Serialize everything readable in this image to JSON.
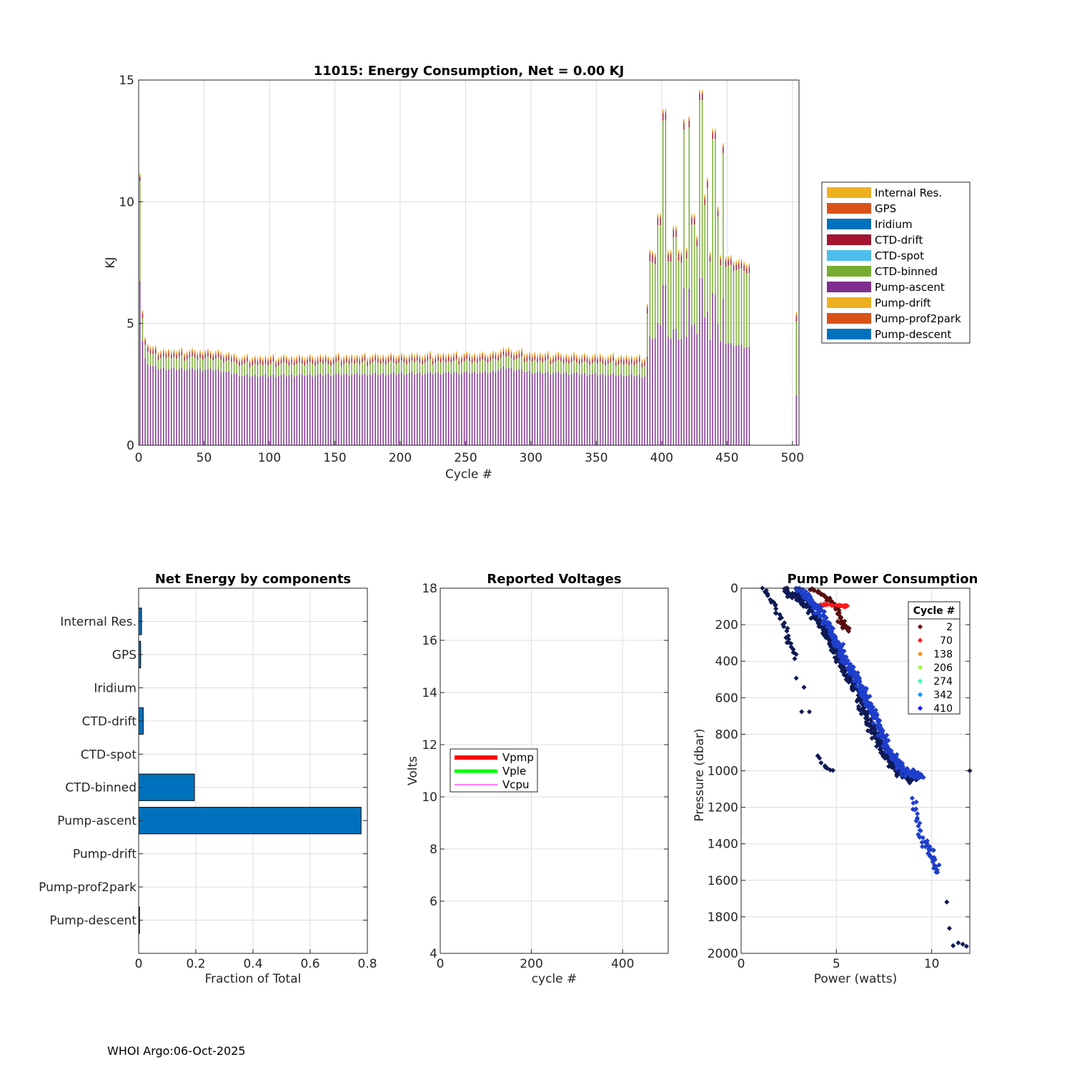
{
  "footer": "WHOI Argo:06-Oct-2025",
  "colors": {
    "Internal Res.": "#EDB120",
    "GPS": "#D95319",
    "Iridium": "#0072BD",
    "CTD-drift": "#A2142F",
    "CTD-spot": "#4DBEEE",
    "CTD-binned": "#77AC30",
    "Pump-ascent": "#7E2F8E",
    "Pump-drift": "#EDB120",
    "Pump-prof2park": "#D95319",
    "Pump-descent": "#0072BD",
    "hbar": "#0072BD"
  },
  "chart_data": [
    {
      "id": "energy",
      "type": "bar",
      "stacked": true,
      "title": "11015: Energy Consumption,  Net =   0.00 KJ",
      "xlabel": "Cycle #",
      "ylabel": "KJ",
      "xlim": [
        0,
        505
      ],
      "ylim": [
        0,
        15
      ],
      "xticks": [
        0,
        50,
        100,
        150,
        200,
        250,
        300,
        350,
        400,
        450,
        500
      ],
      "yticks": [
        0,
        5,
        10,
        15
      ],
      "grid": true,
      "legend": [
        "Internal Res.",
        "GPS",
        "Iridium",
        "CTD-drift",
        "CTD-spot",
        "CTD-binned",
        "Pump-ascent",
        "Pump-drift",
        "Pump-prof2park",
        "Pump-descent"
      ],
      "legend_position": "outside-right",
      "cycle_step": 2,
      "cycle_ranges": [
        [
          1,
          468
        ],
        [
          503,
          503
        ]
      ],
      "anchors": {
        "pump_ascent": [
          [
            1,
            6.8
          ],
          [
            2,
            5.0
          ],
          [
            4,
            3.6
          ],
          [
            8,
            3.3
          ],
          [
            15,
            3.15
          ],
          [
            60,
            3.1
          ],
          [
            80,
            2.85
          ],
          [
            150,
            2.9
          ],
          [
            270,
            3.0
          ],
          [
            280,
            3.2
          ],
          [
            300,
            3.0
          ],
          [
            388,
            2.85
          ],
          [
            390,
            4.4
          ],
          [
            430,
            4.4
          ],
          [
            450,
            4.2
          ],
          [
            468,
            4.0
          ],
          [
            503,
            2.0
          ]
        ],
        "ctd_binned": [
          [
            1,
            4.0
          ],
          [
            2,
            1.0
          ],
          [
            4,
            0.6
          ],
          [
            10,
            0.4
          ],
          [
            50,
            0.4
          ],
          [
            100,
            0.4
          ],
          [
            200,
            0.4
          ],
          [
            388,
            0.4
          ],
          [
            390,
            3.0
          ],
          [
            430,
            3.2
          ],
          [
            468,
            3.0
          ],
          [
            503,
            2.9
          ]
        ],
        "ctd_drift": [
          [
            1,
            0.15
          ],
          [
            388,
            0.15
          ],
          [
            390,
            0.3
          ],
          [
            468,
            0.2
          ],
          [
            503,
            0.2
          ]
        ],
        "gps": [
          [
            1,
            0.08
          ],
          [
            468,
            0.08
          ],
          [
            503,
            0.1
          ]
        ],
        "internal": [
          [
            1,
            0.08
          ],
          [
            468,
            0.1
          ],
          [
            503,
            0.1
          ]
        ]
      },
      "spikes": [
        [
          398,
          9.5
        ],
        [
          402,
          13.8
        ],
        [
          407,
          8.0
        ],
        [
          410,
          9.0
        ],
        [
          414,
          7.8
        ],
        [
          417,
          13.4
        ],
        [
          421,
          13.5
        ],
        [
          424,
          9.5
        ],
        [
          426,
          8.6
        ],
        [
          430,
          14.6
        ],
        [
          433,
          10.3
        ],
        [
          435,
          11.0
        ],
        [
          440,
          13.0
        ],
        [
          442,
          9.8
        ],
        [
          447,
          12.4
        ]
      ]
    },
    {
      "id": "components",
      "type": "bar",
      "orientation": "horizontal",
      "title": "Net Energy by components",
      "xlabel": "Fraction of Total",
      "categories": [
        "Internal Res.",
        "GPS",
        "Iridium",
        "CTD-drift",
        "CTD-spot",
        "CTD-binned",
        "Pump-ascent",
        "Pump-drift",
        "Pump-prof2park",
        "Pump-descent"
      ],
      "values": [
        0.01,
        0.007,
        0.0,
        0.016,
        0.0,
        0.195,
        0.778,
        0.0,
        0.0,
        0.003
      ],
      "xlim": [
        0,
        0.8
      ],
      "xticks": [
        "0",
        "0.2",
        "0.4",
        "0.6",
        "0.8"
      ],
      "grid": true
    },
    {
      "id": "voltages",
      "type": "line",
      "title": "Reported Voltages",
      "xlabel": "cycle #",
      "ylabel": "Volts",
      "xlim": [
        0,
        500
      ],
      "ylim": [
        4,
        18
      ],
      "xticks": [
        0,
        200,
        400
      ],
      "yticks": [
        4,
        6,
        8,
        10,
        12,
        14,
        16,
        18
      ],
      "grid": true,
      "series": [
        {
          "name": "Vpmp",
          "color": "#FF0000",
          "values": []
        },
        {
          "name": "Vple",
          "color": "#00FF00",
          "values": []
        },
        {
          "name": "Vcpu",
          "color": "#FF00FF",
          "values": []
        }
      ],
      "legend_position": "middle-left"
    },
    {
      "id": "pump",
      "type": "scatter",
      "title": "Pump Power Consumption",
      "xlabel": "Power (watts)",
      "ylabel": "Pressure (dbar)",
      "xlim": [
        0,
        12
      ],
      "ylim": [
        0,
        2000
      ],
      "y_reversed": true,
      "xticks": [
        0,
        5,
        10
      ],
      "yticks": [
        0,
        200,
        400,
        600,
        800,
        1000,
        1200,
        1400,
        1600,
        1800,
        2000
      ],
      "grid": true,
      "legend_title": "Cycle #",
      "legend_position": "top-right",
      "legend": [
        {
          "label": "2",
          "color": "#6B0A0A"
        },
        {
          "label": "70",
          "color": "#FF1A1A"
        },
        {
          "label": "138",
          "color": "#FF8C1A"
        },
        {
          "label": "206",
          "color": "#9BFF33"
        },
        {
          "label": "274",
          "color": "#33FFB5"
        },
        {
          "label": "342",
          "color": "#1A8CFF"
        },
        {
          "label": "410",
          "color": "#1A1AFF"
        }
      ],
      "clusters": [
        {
          "color": "#5A0E0E",
          "trend": [
            [
              3.6,
              0
            ],
            [
              4.4,
              40
            ],
            [
              5.0,
              100
            ],
            [
              5.3,
              200
            ],
            [
              5.6,
              230
            ]
          ],
          "n": 60,
          "jitter": [
            0.25,
            15
          ]
        },
        {
          "color": "#FF1A1A",
          "trend": [
            [
              4.3,
              90
            ],
            [
              5.2,
              95
            ],
            [
              5.6,
              100
            ]
          ],
          "n": 25,
          "jitter": [
            0.25,
            6
          ]
        },
        {
          "color": "#0F1A55",
          "trend": [
            [
              2.3,
              0
            ],
            [
              3.5,
              100
            ],
            [
              4.5,
              250
            ],
            [
              5.2,
              400
            ],
            [
              6.0,
              550
            ],
            [
              6.8,
              750
            ],
            [
              7.5,
              900
            ],
            [
              8.2,
              1000
            ],
            [
              9.0,
              1050
            ]
          ],
          "n": 420,
          "jitter": [
            0.3,
            30
          ]
        },
        {
          "color": "#1E3ECC",
          "trend": [
            [
              3.0,
              0
            ],
            [
              4.0,
              100
            ],
            [
              4.8,
              250
            ],
            [
              5.5,
              400
            ],
            [
              6.3,
              550
            ],
            [
              7.0,
              700
            ],
            [
              7.8,
              900
            ],
            [
              8.5,
              1000
            ],
            [
              9.5,
              1030
            ]
          ],
          "n": 380,
          "jitter": [
            0.3,
            30
          ]
        },
        {
          "color": "#0F1A55",
          "trend": [
            [
              1.2,
              0
            ],
            [
              1.8,
              100
            ],
            [
              2.4,
              250
            ],
            [
              2.9,
              380
            ]
          ],
          "n": 35,
          "jitter": [
            0.2,
            20
          ]
        },
        {
          "color": "#0F1A55",
          "trend": [
            [
              3.2,
              680
            ],
            [
              3.6,
              675
            ]
          ],
          "n": 2,
          "jitter": [
            0.05,
            5
          ]
        },
        {
          "color": "#0F1A55",
          "trend": [
            [
              4.0,
              920
            ],
            [
              4.4,
              985
            ],
            [
              4.8,
              1000
            ]
          ],
          "n": 8,
          "jitter": [
            0.1,
            12
          ]
        },
        {
          "color": "#1E3ECC",
          "trend": [
            [
              9.0,
              1150
            ],
            [
              9.5,
              1380
            ],
            [
              10.0,
              1450
            ],
            [
              10.3,
              1550
            ]
          ],
          "n": 50,
          "jitter": [
            0.25,
            35
          ]
        },
        {
          "color": "#0F1A55",
          "trend": [
            [
              10.8,
              1720
            ],
            [
              11.0,
              1960
            ],
            [
              11.5,
              1940
            ],
            [
              11.8,
              1965
            ]
          ],
          "n": 6,
          "jitter": [
            0.05,
            8
          ]
        },
        {
          "color": "#0F1A55",
          "trend": [
            [
              12.0,
              1000
            ]
          ],
          "n": 1,
          "jitter": [
            0,
            0
          ]
        },
        {
          "color": "#0F1A55",
          "trend": [
            [
              2.9,
              490
            ],
            [
              3.3,
              545
            ]
          ],
          "n": 2,
          "jitter": [
            0.03,
            5
          ]
        }
      ]
    }
  ]
}
